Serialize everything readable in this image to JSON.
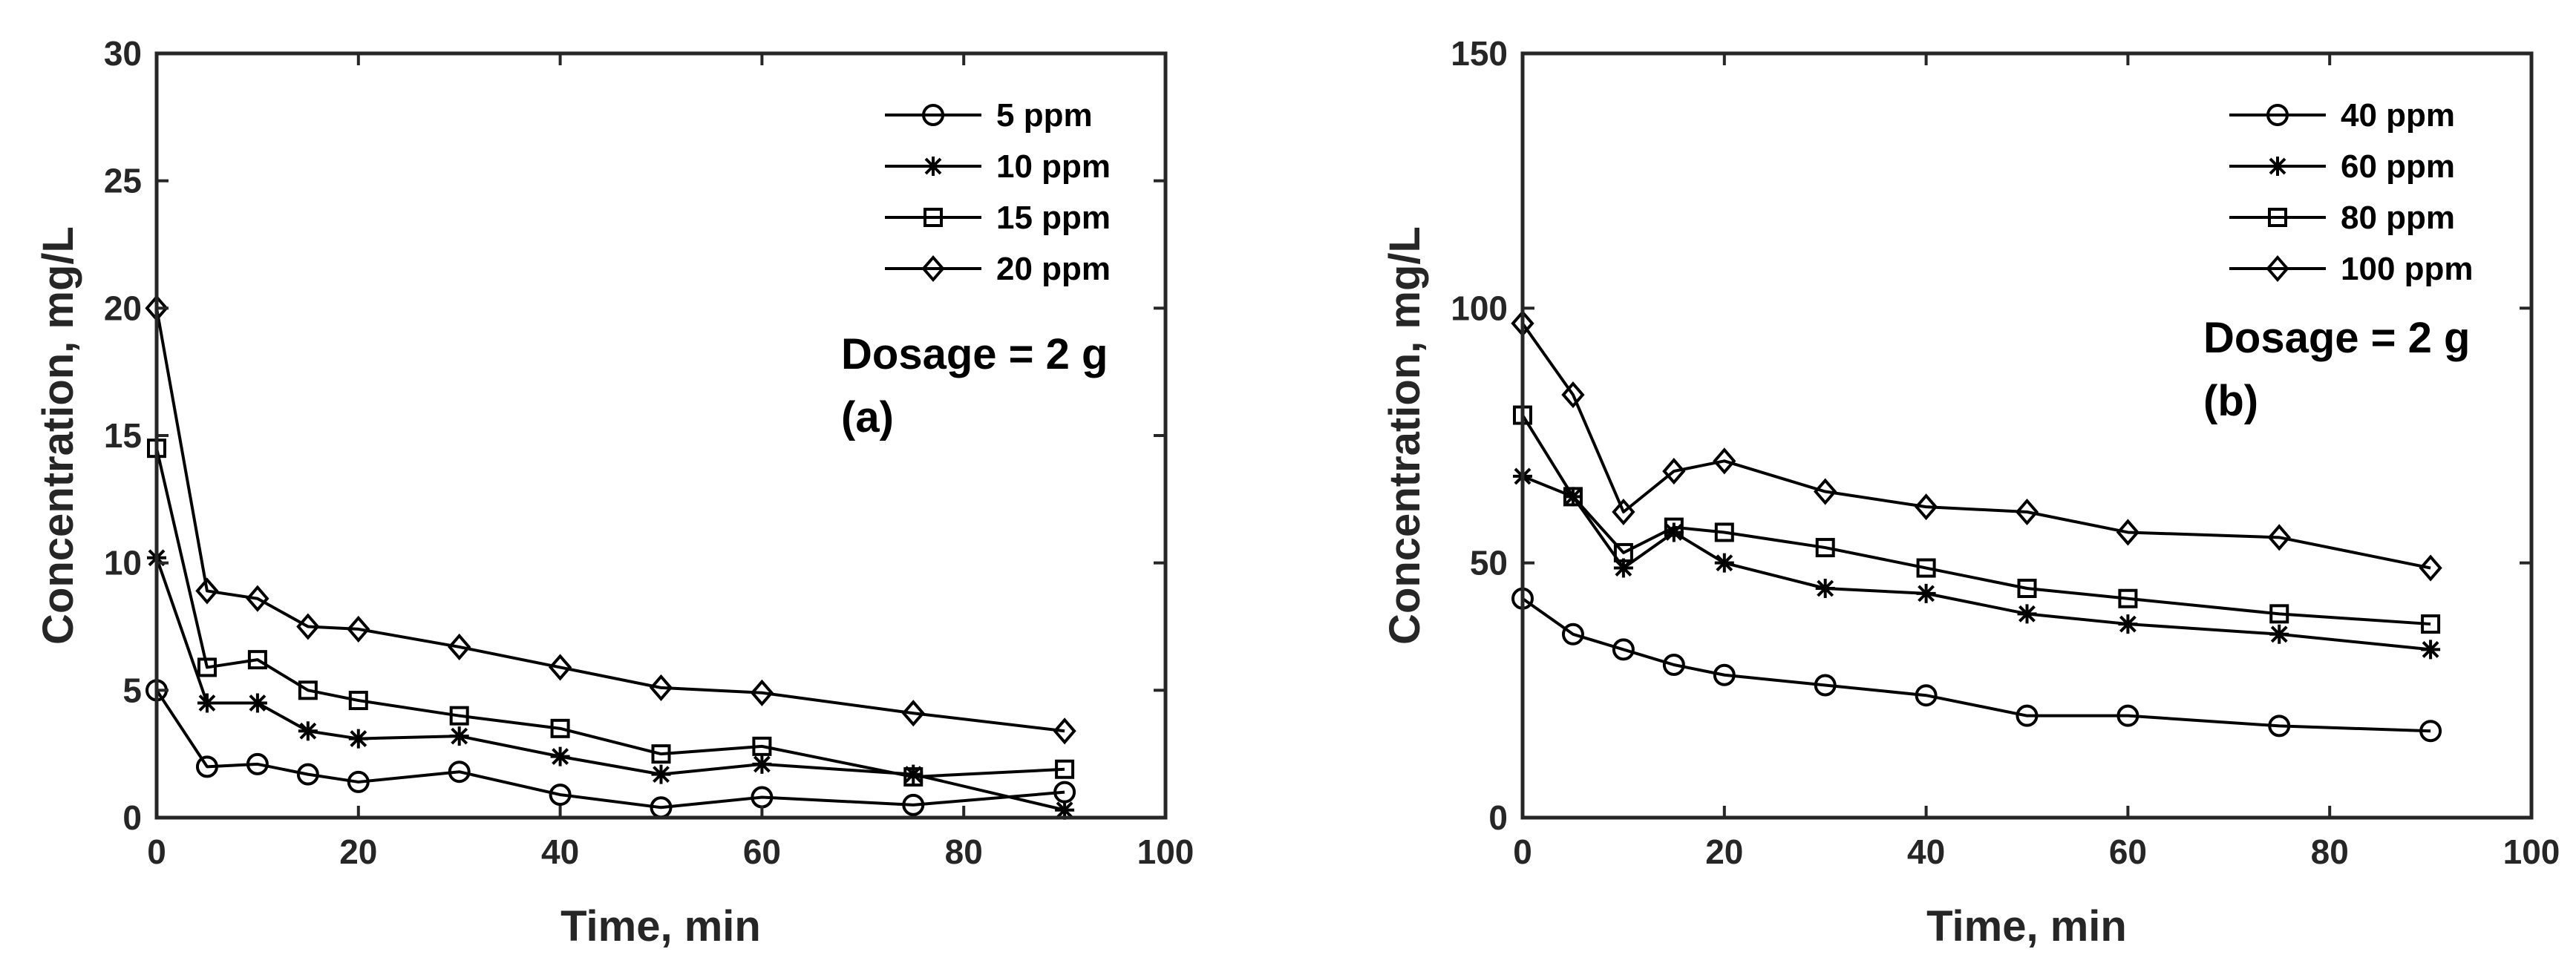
{
  "chart_data": [
    {
      "type": "line",
      "panel_label": "(a)",
      "annotation": "Dosage = 2 g",
      "xlabel": "Time, min",
      "ylabel": "Concentration, mg/L",
      "xlim": [
        0,
        100
      ],
      "ylim": [
        0,
        30
      ],
      "xticks": [
        0,
        20,
        40,
        60,
        80,
        100
      ],
      "yticks": [
        0,
        5,
        10,
        15,
        20,
        25,
        30
      ],
      "grid": false,
      "legend_position": "top-right",
      "line_color": "#000000",
      "x": [
        0,
        5,
        10,
        15,
        20,
        30,
        40,
        50,
        60,
        75,
        90
      ],
      "series": [
        {
          "name": "5 ppm",
          "marker": "circle",
          "values": [
            5.0,
            2.0,
            2.1,
            1.7,
            1.4,
            1.8,
            0.9,
            0.4,
            0.8,
            0.5,
            1.0
          ]
        },
        {
          "name": "10 ppm",
          "marker": "asterisk",
          "values": [
            10.2,
            4.5,
            4.5,
            3.4,
            3.1,
            3.2,
            2.4,
            1.7,
            2.1,
            1.7,
            0.3
          ]
        },
        {
          "name": "15 ppm",
          "marker": "square",
          "values": [
            14.5,
            5.9,
            6.2,
            5.0,
            4.6,
            4.0,
            3.5,
            2.5,
            2.8,
            1.6,
            1.9
          ]
        },
        {
          "name": "20 ppm",
          "marker": "diamond",
          "values": [
            20.0,
            8.9,
            8.6,
            7.5,
            7.4,
            6.7,
            5.9,
            5.1,
            4.9,
            4.1,
            3.4
          ]
        }
      ]
    },
    {
      "type": "line",
      "panel_label": "(b)",
      "annotation": "Dosage = 2 g",
      "xlabel": "Time, min",
      "ylabel": "Concentration, mg/L",
      "xlim": [
        0,
        100
      ],
      "ylim": [
        0,
        150
      ],
      "xticks": [
        0,
        20,
        40,
        60,
        80,
        100
      ],
      "yticks": [
        0,
        50,
        100,
        150
      ],
      "grid": false,
      "legend_position": "top-right",
      "line_color": "#000000",
      "x": [
        0,
        5,
        10,
        15,
        20,
        30,
        40,
        50,
        60,
        75,
        90
      ],
      "series": [
        {
          "name": "40 ppm",
          "marker": "circle",
          "values": [
            43,
            36,
            33,
            30,
            28,
            26,
            24,
            20,
            20,
            18,
            17
          ]
        },
        {
          "name": "60 ppm",
          "marker": "asterisk",
          "values": [
            67,
            63,
            49,
            56,
            50,
            45,
            44,
            40,
            38,
            36,
            33
          ]
        },
        {
          "name": "80 ppm",
          "marker": "square",
          "values": [
            79,
            63,
            52,
            57,
            56,
            53,
            49,
            45,
            43,
            40,
            38
          ]
        },
        {
          "name": "100 ppm",
          "marker": "diamond",
          "values": [
            97,
            83,
            60,
            68,
            70,
            64,
            61,
            60,
            56,
            55,
            49
          ]
        }
      ]
    }
  ]
}
